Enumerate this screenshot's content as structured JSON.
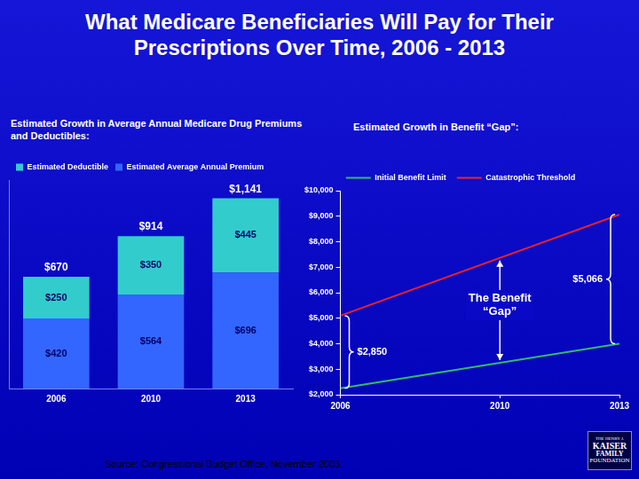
{
  "title": "What Medicare Beneficiaries Will Pay for Their Prescriptions Over Time, 2006 - 2013",
  "source": "Source: Congressional Budget Office, November 2003.",
  "logo": [
    "THE HENRY J.",
    "KAISER",
    "FAMILY",
    "FOUNDATION"
  ],
  "chart_data": [
    {
      "type": "bar",
      "title": "Estimated Growth in Average Annual Medicare Drug Premiums and Deductibles:",
      "categories": [
        "2006",
        "2010",
        "2013"
      ],
      "stacked": true,
      "series": [
        {
          "name": "Estimated Average Annual Premium",
          "color": "#3366ff",
          "values": [
            420,
            564,
            696
          ],
          "value_labels": [
            "$420",
            "$564",
            "$696"
          ]
        },
        {
          "name": "Estimated Deductible",
          "color": "#33cccc",
          "values": [
            250,
            350,
            445
          ],
          "value_labels": [
            "$250",
            "$350",
            "$445"
          ]
        }
      ],
      "totals": [
        670,
        914,
        1141
      ],
      "total_labels": [
        "$670",
        "$914",
        "$1,141"
      ],
      "ylim": [
        0,
        1250
      ],
      "grid": false,
      "legend": "top-left",
      "data_labels": true,
      "tick_labels": "x"
    },
    {
      "type": "line",
      "title": "Estimated Growth in Benefit “Gap”:",
      "x": [
        2006,
        2013
      ],
      "series": [
        {
          "name": "Initial Benefit Limit",
          "color": "#33bb66",
          "values": [
            2250,
            4000
          ]
        },
        {
          "name": "Catastrophic Threshold",
          "color": "#ee2222",
          "values": [
            5100,
            9066
          ]
        }
      ],
      "xlim": [
        2006,
        2013
      ],
      "xticks": [
        2006,
        2010,
        2013
      ],
      "ylim": [
        2000,
        10000
      ],
      "yticks": [
        {
          "value": 2000,
          "label": "$2,000"
        },
        {
          "value": 3000,
          "label": "$3,000"
        },
        {
          "value": 4000,
          "label": "$4,000"
        },
        {
          "value": 5000,
          "label": "$5,000"
        },
        {
          "value": 6000,
          "label": "$6,000"
        },
        {
          "value": 7000,
          "label": "$7,000"
        },
        {
          "value": 8000,
          "label": "$8,000"
        },
        {
          "value": 9000,
          "label": "$9,000"
        },
        {
          "value": 10000,
          "label": "$10,000"
        }
      ],
      "grid": false,
      "legend": "top",
      "gaps": [
        {
          "x": 2006,
          "value": 2850,
          "label": "$2,850"
        },
        {
          "x": 2013,
          "value": 5066,
          "label": "$5,066"
        }
      ],
      "annotations": [
        {
          "text": "The Benefit “Gap”",
          "x": 2010
        }
      ]
    }
  ]
}
